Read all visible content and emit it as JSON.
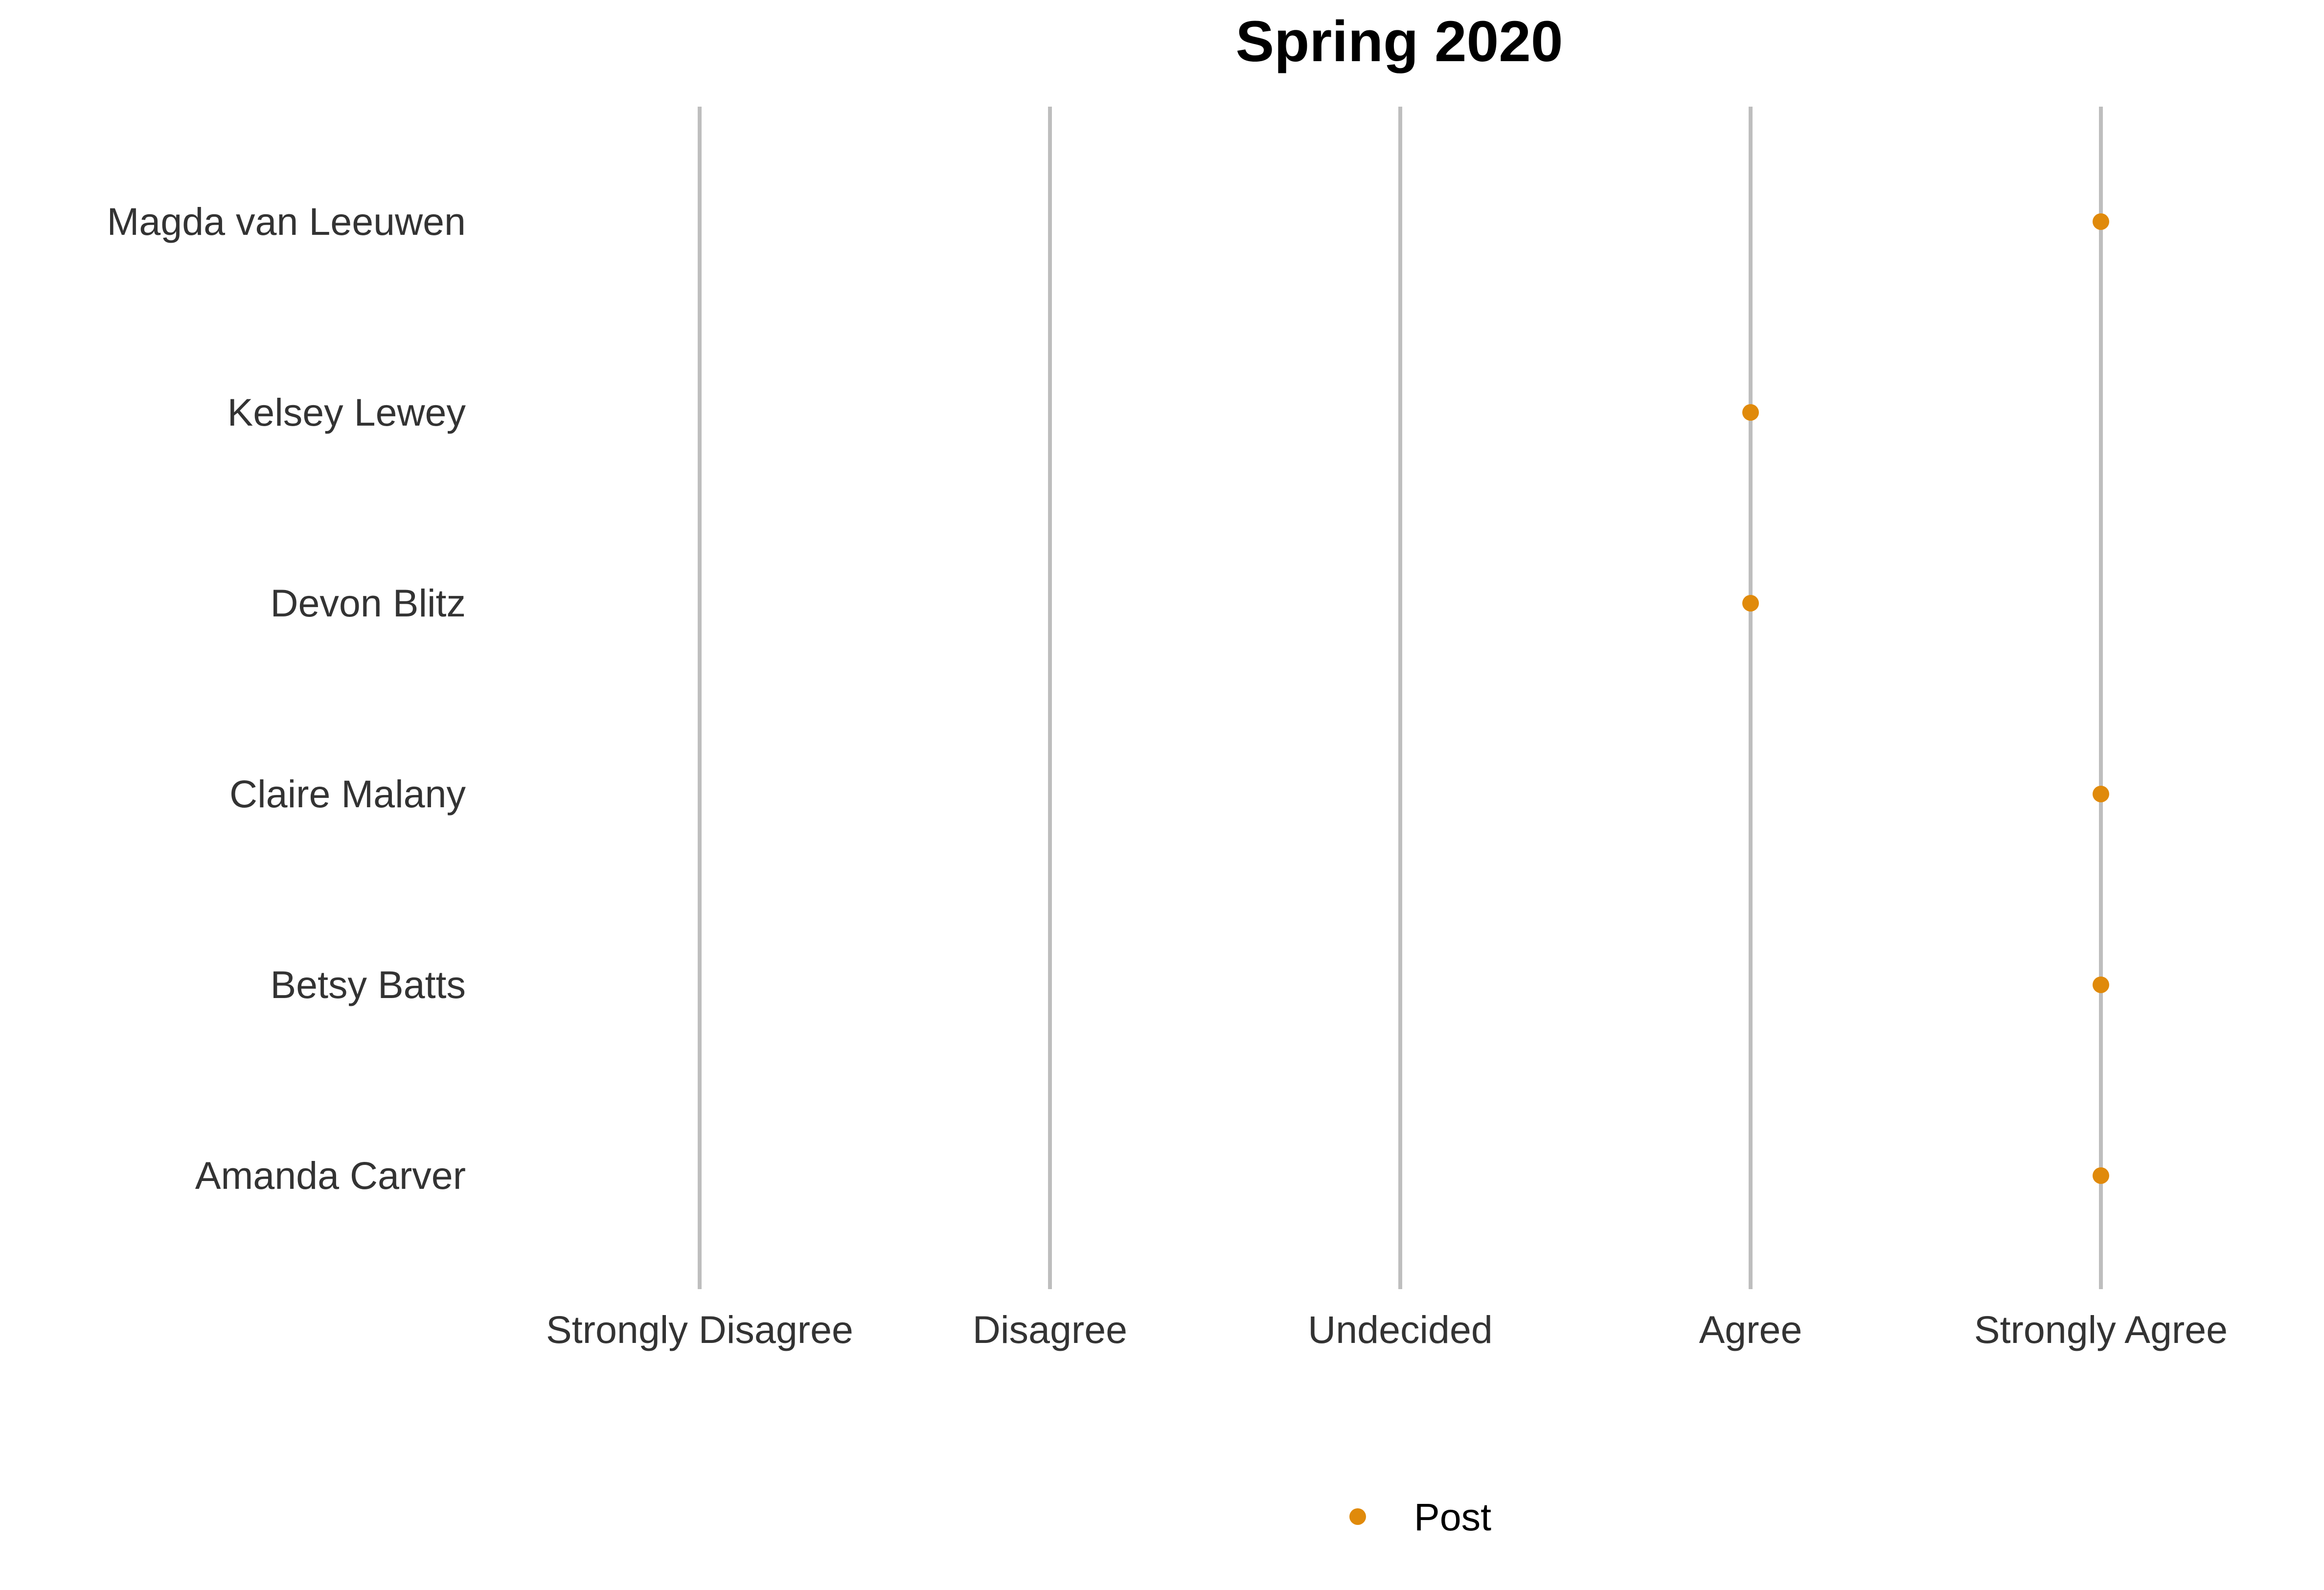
{
  "chart_data": {
    "type": "scatter",
    "title": "Spring 2020",
    "xlabel": "",
    "ylabel": "",
    "x_categories": [
      "Strongly Disagree",
      "Disagree",
      "Undecided",
      "Agree",
      "Strongly Agree"
    ],
    "y_categories": [
      "Magda van Leeuwen",
      "Kelsey Lewey",
      "Devon Blitz",
      "Claire Malany",
      "Betsy Batts",
      "Amanda Carver"
    ],
    "grid": "vertical lines at each x category",
    "legend_position": "bottom",
    "series": [
      {
        "name": "Post",
        "color": "#e08a0b",
        "points": [
          {
            "y": "Magda van Leeuwen",
            "x": "Strongly Agree"
          },
          {
            "y": "Kelsey Lewey",
            "x": "Agree"
          },
          {
            "y": "Devon Blitz",
            "x": "Agree"
          },
          {
            "y": "Claire Malany",
            "x": "Strongly Agree"
          },
          {
            "y": "Betsy Batts",
            "x": "Strongly Agree"
          },
          {
            "y": "Amanda Carver",
            "x": "Strongly Agree"
          }
        ]
      }
    ]
  }
}
